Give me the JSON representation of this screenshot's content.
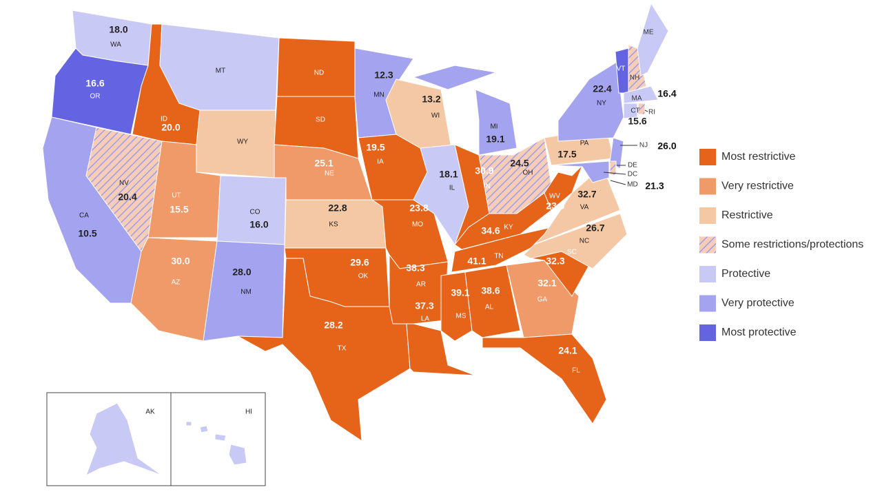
{
  "legend": [
    {
      "label": "Most restrictive",
      "color": "#e5641a"
    },
    {
      "label": "Very restrictive",
      "color": "#ef9a68"
    },
    {
      "label": "Restrictive",
      "color": "#f5c8a5"
    },
    {
      "label": "Some restrictions/protections",
      "color": "#f7cdb8",
      "stripe": "#9d9de8"
    },
    {
      "label": "Protective",
      "color": "#c9c9f5"
    },
    {
      "label": "Very protective",
      "color": "#a3a3ef"
    },
    {
      "label": "Most protective",
      "color": "#6464e3"
    }
  ],
  "states": [
    {
      "abbr": "WA",
      "category": 4,
      "value": "18.0"
    },
    {
      "abbr": "OR",
      "category": 6,
      "value": "16.6"
    },
    {
      "abbr": "CA",
      "category": 5,
      "value": "10.5"
    },
    {
      "abbr": "NV",
      "category": 3,
      "value": "20.4"
    },
    {
      "abbr": "ID",
      "category": 0,
      "value": "20.0"
    },
    {
      "abbr": "MT",
      "category": 4
    },
    {
      "abbr": "WY",
      "category": 2
    },
    {
      "abbr": "UT",
      "category": 1,
      "value": "15.5"
    },
    {
      "abbr": "AZ",
      "category": 1,
      "value": "30.0"
    },
    {
      "abbr": "CO",
      "category": 4,
      "value": "16.0"
    },
    {
      "abbr": "NM",
      "category": 5,
      "value": "28.0"
    },
    {
      "abbr": "ND",
      "category": 0
    },
    {
      "abbr": "SD",
      "category": 0
    },
    {
      "abbr": "NE",
      "category": 1,
      "value": "25.1"
    },
    {
      "abbr": "KS",
      "category": 2,
      "value": "22.8"
    },
    {
      "abbr": "OK",
      "category": 0,
      "value": "29.6"
    },
    {
      "abbr": "TX",
      "category": 0,
      "value": "28.2"
    },
    {
      "abbr": "MN",
      "category": 5,
      "value": "12.3"
    },
    {
      "abbr": "IA",
      "category": 0,
      "value": "19.5"
    },
    {
      "abbr": "MO",
      "category": 0,
      "value": "23.8"
    },
    {
      "abbr": "AR",
      "category": 0,
      "value": "38.3"
    },
    {
      "abbr": "LA",
      "category": 0,
      "value": "37.3"
    },
    {
      "abbr": "WI",
      "category": 2,
      "value": "13.2"
    },
    {
      "abbr": "IL",
      "category": 4,
      "value": "18.1"
    },
    {
      "abbr": "MI",
      "category": 5,
      "value": "19.1"
    },
    {
      "abbr": "IN",
      "category": 0,
      "value": "30.9"
    },
    {
      "abbr": "OH",
      "category": 3,
      "value": "24.5"
    },
    {
      "abbr": "KY",
      "category": 0,
      "value": "34.6"
    },
    {
      "abbr": "TN",
      "category": 0,
      "value": "41.1"
    },
    {
      "abbr": "MS",
      "category": 0,
      "value": "39.1"
    },
    {
      "abbr": "AL",
      "category": 0,
      "value": "38.6"
    },
    {
      "abbr": "GA",
      "category": 1,
      "value": "32.1"
    },
    {
      "abbr": "FL",
      "category": 0,
      "value": "24.1"
    },
    {
      "abbr": "SC",
      "category": 0,
      "value": "32.3"
    },
    {
      "abbr": "NC",
      "category": 2,
      "value": "26.7"
    },
    {
      "abbr": "VA",
      "category": 2,
      "value": "32.7"
    },
    {
      "abbr": "WV",
      "category": 0,
      "value": "23.9"
    },
    {
      "abbr": "PA",
      "category": 2,
      "value": "17.5"
    },
    {
      "abbr": "NY",
      "category": 5,
      "value": "22.4"
    },
    {
      "abbr": "NJ",
      "category": 5,
      "value": "26.0"
    },
    {
      "abbr": "DE",
      "category": 3
    },
    {
      "abbr": "DC",
      "category": 4
    },
    {
      "abbr": "MD",
      "category": 5,
      "value": "21.3"
    },
    {
      "abbr": "VT",
      "category": 6
    },
    {
      "abbr": "NH",
      "category": 3
    },
    {
      "abbr": "ME",
      "category": 4
    },
    {
      "abbr": "MA",
      "category": 4,
      "value": "16.4"
    },
    {
      "abbr": "CT",
      "category": 4,
      "value": "15.6"
    },
    {
      "abbr": "RI",
      "category": 3
    },
    {
      "abbr": "AK",
      "category": 4
    },
    {
      "abbr": "HI",
      "category": 4
    }
  ]
}
